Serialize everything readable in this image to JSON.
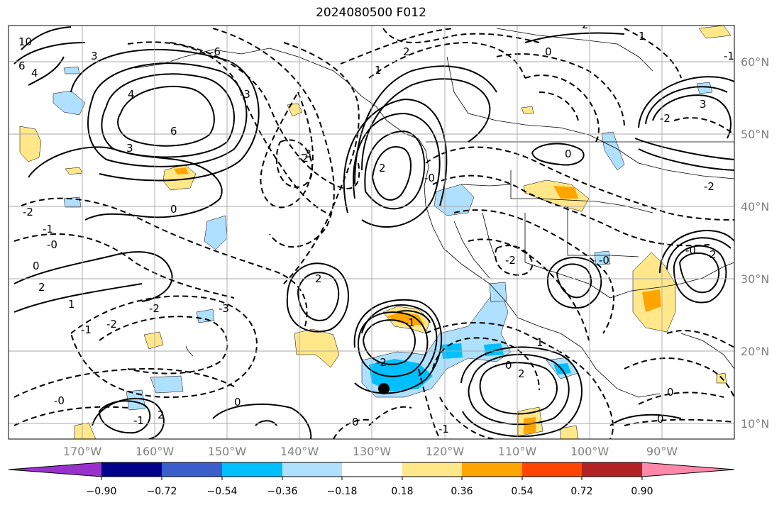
{
  "title": "2024080500 F012",
  "lat_labels": [
    "60°N",
    "50°N",
    "40°N",
    "30°N",
    "20°N",
    "10°N"
  ],
  "lon_labels": [
    "170°W",
    "160°W",
    "150°W",
    "140°W",
    "130°W",
    "120°W",
    "110°W",
    "100°W",
    "90°W"
  ],
  "colorbar": {
    "ticks": [
      "−0.90",
      "−0.72",
      "−0.54",
      "−0.36",
      "−0.18",
      "0.18",
      "0.36",
      "0.54",
      "0.72",
      "0.90"
    ],
    "colors": [
      "#9932cc",
      "#00008b",
      "#3a5fcd",
      "#00bfff",
      "#b0e0ff",
      "#ffffff",
      "#ffe78a",
      "#ffa500",
      "#ff4500",
      "#b22222",
      "#ff88aa"
    ]
  },
  "contour_labels": [
    "10",
    "6",
    "4",
    "3",
    "6",
    "3",
    "4",
    "-6",
    "-3",
    "-2",
    "0",
    "-3",
    "-2",
    "1",
    "2",
    "-1",
    "-2",
    "-0",
    "0",
    "-2",
    "2",
    "-1",
    "-1",
    "-0",
    "2",
    "-3",
    "2",
    "1",
    "-2",
    "0",
    "-1",
    "0",
    "-0",
    "0",
    "0",
    "1",
    "-2",
    "-0",
    "2",
    "1",
    "0",
    "2",
    "-0",
    "-2",
    "0",
    "3",
    "-2",
    "0",
    "-1",
    "2",
    "-1",
    "2"
  ],
  "marker": "storm-center"
}
